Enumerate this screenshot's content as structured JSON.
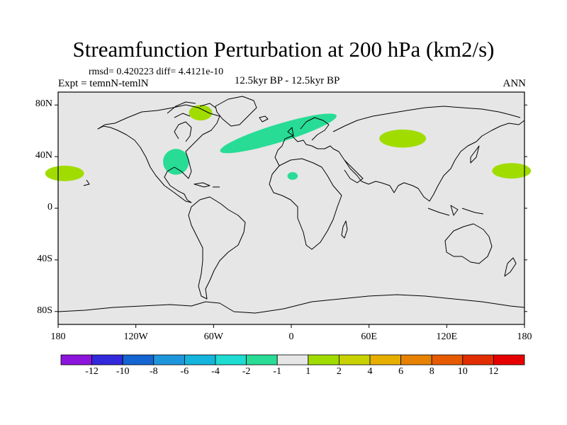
{
  "title": "Streamfunction Perturbation at 200 hPa (km2/s)",
  "stats": "rmsd= 0.420223 diff= 4.4121e-10",
  "experiment": "Expt = temnN-temlN",
  "period": "12.5kyr BP - 12.5kyr BP",
  "season": "ANN",
  "map": {
    "lon_range": [
      -180,
      180
    ],
    "lat_range": [
      -90,
      90
    ],
    "background_color": "#e6e6e6",
    "y_ticks": [
      {
        "label": "80N",
        "lat": 80
      },
      {
        "label": "40N",
        "lat": 40
      },
      {
        "label": "0",
        "lat": 0
      },
      {
        "label": "40S",
        "lat": -40
      },
      {
        "label": "80S",
        "lat": -80
      }
    ],
    "x_ticks": [
      {
        "label": "180",
        "lon": -180
      },
      {
        "label": "120W",
        "lon": -120
      },
      {
        "label": "60W",
        "lon": -60
      },
      {
        "label": "0",
        "lon": 0
      },
      {
        "label": "60E",
        "lon": 60
      },
      {
        "label": "120E",
        "lon": 120
      },
      {
        "label": "180",
        "lon": 180
      }
    ],
    "anomalies": [
      {
        "id": "pacific-east",
        "color": "#a0dc00",
        "lon": -175,
        "lat": 27,
        "rlon": 15,
        "rlat": 6
      },
      {
        "id": "pacific-west",
        "color": "#a0dc00",
        "lon": 170,
        "lat": 29,
        "rlon": 15,
        "rlat": 6
      },
      {
        "id": "siberia",
        "color": "#a0dc00",
        "lon": 86,
        "lat": 54,
        "rlon": 18,
        "rlat": 7
      },
      {
        "id": "hudson-bay",
        "color": "#a0dc00",
        "lon": -70,
        "lat": 74,
        "rlon": 9,
        "rlat": 6
      },
      {
        "id": "north-atlantic",
        "color": "#28dc96",
        "lon": -10,
        "lat": 58,
        "rlon": 47,
        "rlat": 7,
        "rot": -17
      },
      {
        "id": "east-us",
        "color": "#28dc96",
        "lon": -89,
        "lat": 36,
        "rlon": 10,
        "rlat": 10
      },
      {
        "id": "sahara",
        "color": "#28dc96",
        "lon": 1,
        "lat": 25,
        "rlon": 4,
        "rlat": 3
      }
    ]
  },
  "colorbar": {
    "colors": [
      "#8c14dc",
      "#3228dc",
      "#1464d2",
      "#1e96dc",
      "#14b4dc",
      "#1edcd2",
      "#28dc96",
      "#e6e6e6",
      "#a0dc00",
      "#c8d200",
      "#e6af00",
      "#e68200",
      "#e65a00",
      "#e12d00",
      "#e60000"
    ],
    "labels": [
      "-12",
      "-10",
      "-8",
      "-6",
      "-4",
      "-2",
      "-1",
      "1",
      "2",
      "4",
      "6",
      "8",
      "10",
      "12"
    ]
  }
}
